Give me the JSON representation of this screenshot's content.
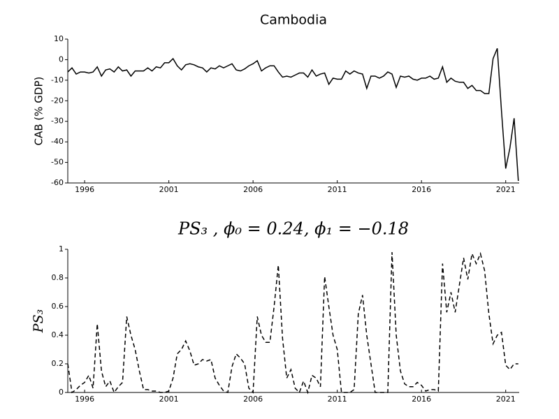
{
  "chart_data": [
    {
      "type": "line",
      "title": "Cambodia",
      "ylabel": "CAB (% GDP)",
      "x": [
        1995,
        1995.25,
        1995.5,
        1995.75,
        1996,
        1996.25,
        1996.5,
        1996.75,
        1997,
        1997.25,
        1997.5,
        1997.75,
        1998,
        1998.25,
        1998.5,
        1998.75,
        1999,
        1999.25,
        1999.5,
        1999.75,
        2000,
        2000.25,
        2000.5,
        2000.75,
        2001,
        2001.25,
        2001.5,
        2001.75,
        2002,
        2002.25,
        2002.5,
        2002.75,
        2003,
        2003.25,
        2003.5,
        2003.75,
        2004,
        2004.25,
        2004.5,
        2004.75,
        2005,
        2005.25,
        2005.5,
        2005.75,
        2006,
        2006.25,
        2006.5,
        2006.75,
        2007,
        2007.25,
        2007.5,
        2007.75,
        2008,
        2008.25,
        2008.5,
        2008.75,
        2009,
        2009.25,
        2009.5,
        2009.75,
        2010,
        2010.25,
        2010.5,
        2010.75,
        2011,
        2011.25,
        2011.5,
        2011.75,
        2012,
        2012.25,
        2012.5,
        2012.75,
        2013,
        2013.25,
        2013.5,
        2013.75,
        2014,
        2014.25,
        2014.5,
        2014.75,
        2015,
        2015.25,
        2015.5,
        2015.75,
        2016,
        2016.25,
        2016.5,
        2016.75,
        2017,
        2017.25,
        2017.5,
        2017.75,
        2018,
        2018.25,
        2018.5,
        2018.75,
        2019,
        2019.25,
        2019.5,
        2019.75,
        2020,
        2020.25,
        2020.5,
        2020.75,
        2021,
        2021.25,
        2021.5,
        2021.75
      ],
      "series": [
        {
          "color": "#000000",
          "linestyle": "solid",
          "values": [
            -6,
            -4,
            -7,
            -6,
            -6,
            -6.5,
            -6,
            -3.5,
            -8,
            -5,
            -4.5,
            -6,
            -3.5,
            -5.5,
            -5,
            -8,
            -5.5,
            -5.5,
            -5.5,
            -4,
            -5.5,
            -3.5,
            -4,
            -1.5,
            -1.5,
            0.5,
            -3,
            -5,
            -2.5,
            -2,
            -2.5,
            -3.5,
            -4,
            -6,
            -4,
            -4.5,
            -3,
            -4,
            -3,
            -2,
            -5,
            -5.5,
            -4.5,
            -3,
            -2,
            -0.5,
            -5.5,
            -4,
            -3,
            -3,
            -6,
            -8.5,
            -8,
            -8.5,
            -7.5,
            -6.5,
            -6.5,
            -8.5,
            -5,
            -8,
            -7,
            -6.5,
            -12,
            -9,
            -9.5,
            -9.5,
            -5.5,
            -7,
            -5.5,
            -6.5,
            -7,
            -14,
            -8,
            -8,
            -9,
            -8,
            -6,
            -7,
            -13.5,
            -8,
            -8.5,
            -8,
            -9.5,
            -10,
            -9,
            -9,
            -8,
            -9.5,
            -9,
            -3.5,
            -11,
            -9,
            -10.5,
            -11,
            -11,
            -14,
            -12.5,
            -15,
            -15,
            -16.5,
            -16.5,
            0.5,
            5.5,
            -25,
            -53,
            -43,
            -28.5,
            -59
          ]
        }
      ],
      "xlim": [
        1995,
        2021.8
      ],
      "xticks": [
        1996,
        2001,
        2006,
        2011,
        2016,
        2021
      ],
      "ylim": [
        -60,
        10
      ],
      "yticks": [
        -60,
        -50,
        -40,
        -30,
        -20,
        -10,
        0,
        10
      ]
    },
    {
      "type": "line",
      "title": "PS₃ , ϕ₀ = 0.24, ϕ₁ = −0.18",
      "ylabel": "PS₃",
      "x": [
        1995,
        1995.25,
        1995.5,
        1995.75,
        1996,
        1996.25,
        1996.5,
        1996.75,
        1997,
        1997.25,
        1997.5,
        1997.75,
        1998,
        1998.25,
        1998.5,
        1998.75,
        1999,
        1999.25,
        1999.5,
        1999.75,
        2000,
        2000.25,
        2000.5,
        2000.75,
        2001,
        2001.25,
        2001.5,
        2001.75,
        2002,
        2002.25,
        2002.5,
        2002.75,
        2003,
        2003.25,
        2003.5,
        2003.75,
        2004,
        2004.25,
        2004.5,
        2004.75,
        2005,
        2005.25,
        2005.5,
        2005.75,
        2006,
        2006.25,
        2006.5,
        2006.75,
        2007,
        2007.25,
        2007.5,
        2007.75,
        2008,
        2008.25,
        2008.5,
        2008.75,
        2009,
        2009.25,
        2009.5,
        2009.75,
        2010,
        2010.25,
        2010.5,
        2010.75,
        2011,
        2011.25,
        2011.5,
        2011.75,
        2012,
        2012.25,
        2012.5,
        2012.75,
        2013,
        2013.25,
        2013.5,
        2013.75,
        2014,
        2014.25,
        2014.5,
        2014.75,
        2015,
        2015.25,
        2015.5,
        2015.75,
        2016,
        2016.25,
        2016.5,
        2016.75,
        2017,
        2017.25,
        2017.5,
        2017.75,
        2018,
        2018.25,
        2018.5,
        2018.75,
        2019,
        2019.25,
        2019.5,
        2019.75,
        2020,
        2020.25,
        2020.5,
        2020.75,
        2021,
        2021.25,
        2021.5,
        2021.75
      ],
      "series": [
        {
          "color": "#000000",
          "linestyle": "dashed",
          "values": [
            0.2,
            0,
            0.02,
            0.05,
            0.07,
            0.12,
            0.03,
            0.48,
            0.15,
            0.04,
            0.08,
            0,
            0.04,
            0.07,
            0.53,
            0.4,
            0.3,
            0.15,
            0.02,
            0.02,
            0.01,
            0.01,
            0,
            0,
            0.01,
            0.1,
            0.27,
            0.3,
            0.36,
            0.29,
            0.19,
            0.2,
            0.23,
            0.22,
            0.23,
            0.1,
            0.05,
            0.01,
            0,
            0.18,
            0.27,
            0.24,
            0.2,
            0.03,
            0,
            0.53,
            0.4,
            0.35,
            0.35,
            0.6,
            0.89,
            0.38,
            0.1,
            0.16,
            0.03,
            0,
            0.08,
            0,
            0.12,
            0.1,
            0.04,
            0.81,
            0.6,
            0.4,
            0.3,
            0,
            0,
            0,
            0.02,
            0.55,
            0.68,
            0.4,
            0.2,
            0,
            0,
            0,
            0,
            0.98,
            0.4,
            0.15,
            0.06,
            0.04,
            0.04,
            0.07,
            0.05,
            0.01,
            0.02,
            0.02,
            0.01,
            0.9,
            0.56,
            0.7,
            0.56,
            0.75,
            0.94,
            0.79,
            0.97,
            0.9,
            0.97,
            0.85,
            0.55,
            0.34,
            0.4,
            0.42,
            0.19,
            0.16,
            0.2,
            0.2
          ]
        }
      ],
      "xlim": [
        1995,
        2021.8
      ],
      "xticks": [
        1996,
        2001,
        2006,
        2011,
        2016,
        2021
      ],
      "ylim": [
        0,
        1
      ],
      "yticks": [
        0,
        0.2,
        0.4,
        0.6,
        0.8,
        1
      ]
    }
  ]
}
